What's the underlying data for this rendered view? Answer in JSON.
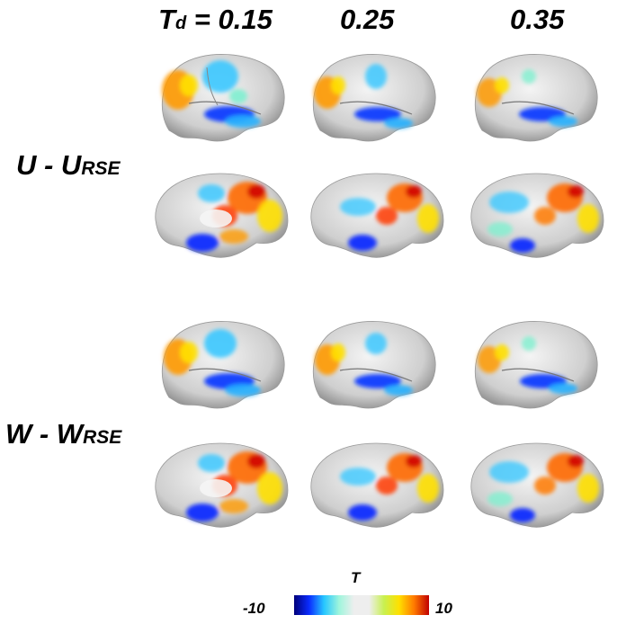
{
  "header": {
    "td_symbol": "T",
    "td_subscript": "d",
    "td_equals": " = ",
    "thresholds": [
      "0.15",
      "0.25",
      "0.35"
    ]
  },
  "rows": [
    {
      "main": "U - U",
      "subscript": "RSE"
    },
    {
      "main": "W - W",
      "subscript": "RSE"
    }
  ],
  "colorbar": {
    "title": "T",
    "min_label": "-10",
    "max_label": "10",
    "colors": [
      "#00007a",
      "#0a2cff",
      "#27c7ff",
      "#9ff5dc",
      "#eeeeee",
      "#eeeeee",
      "#c8f050",
      "#ffe000",
      "#ff7a00",
      "#c00000"
    ]
  }
}
